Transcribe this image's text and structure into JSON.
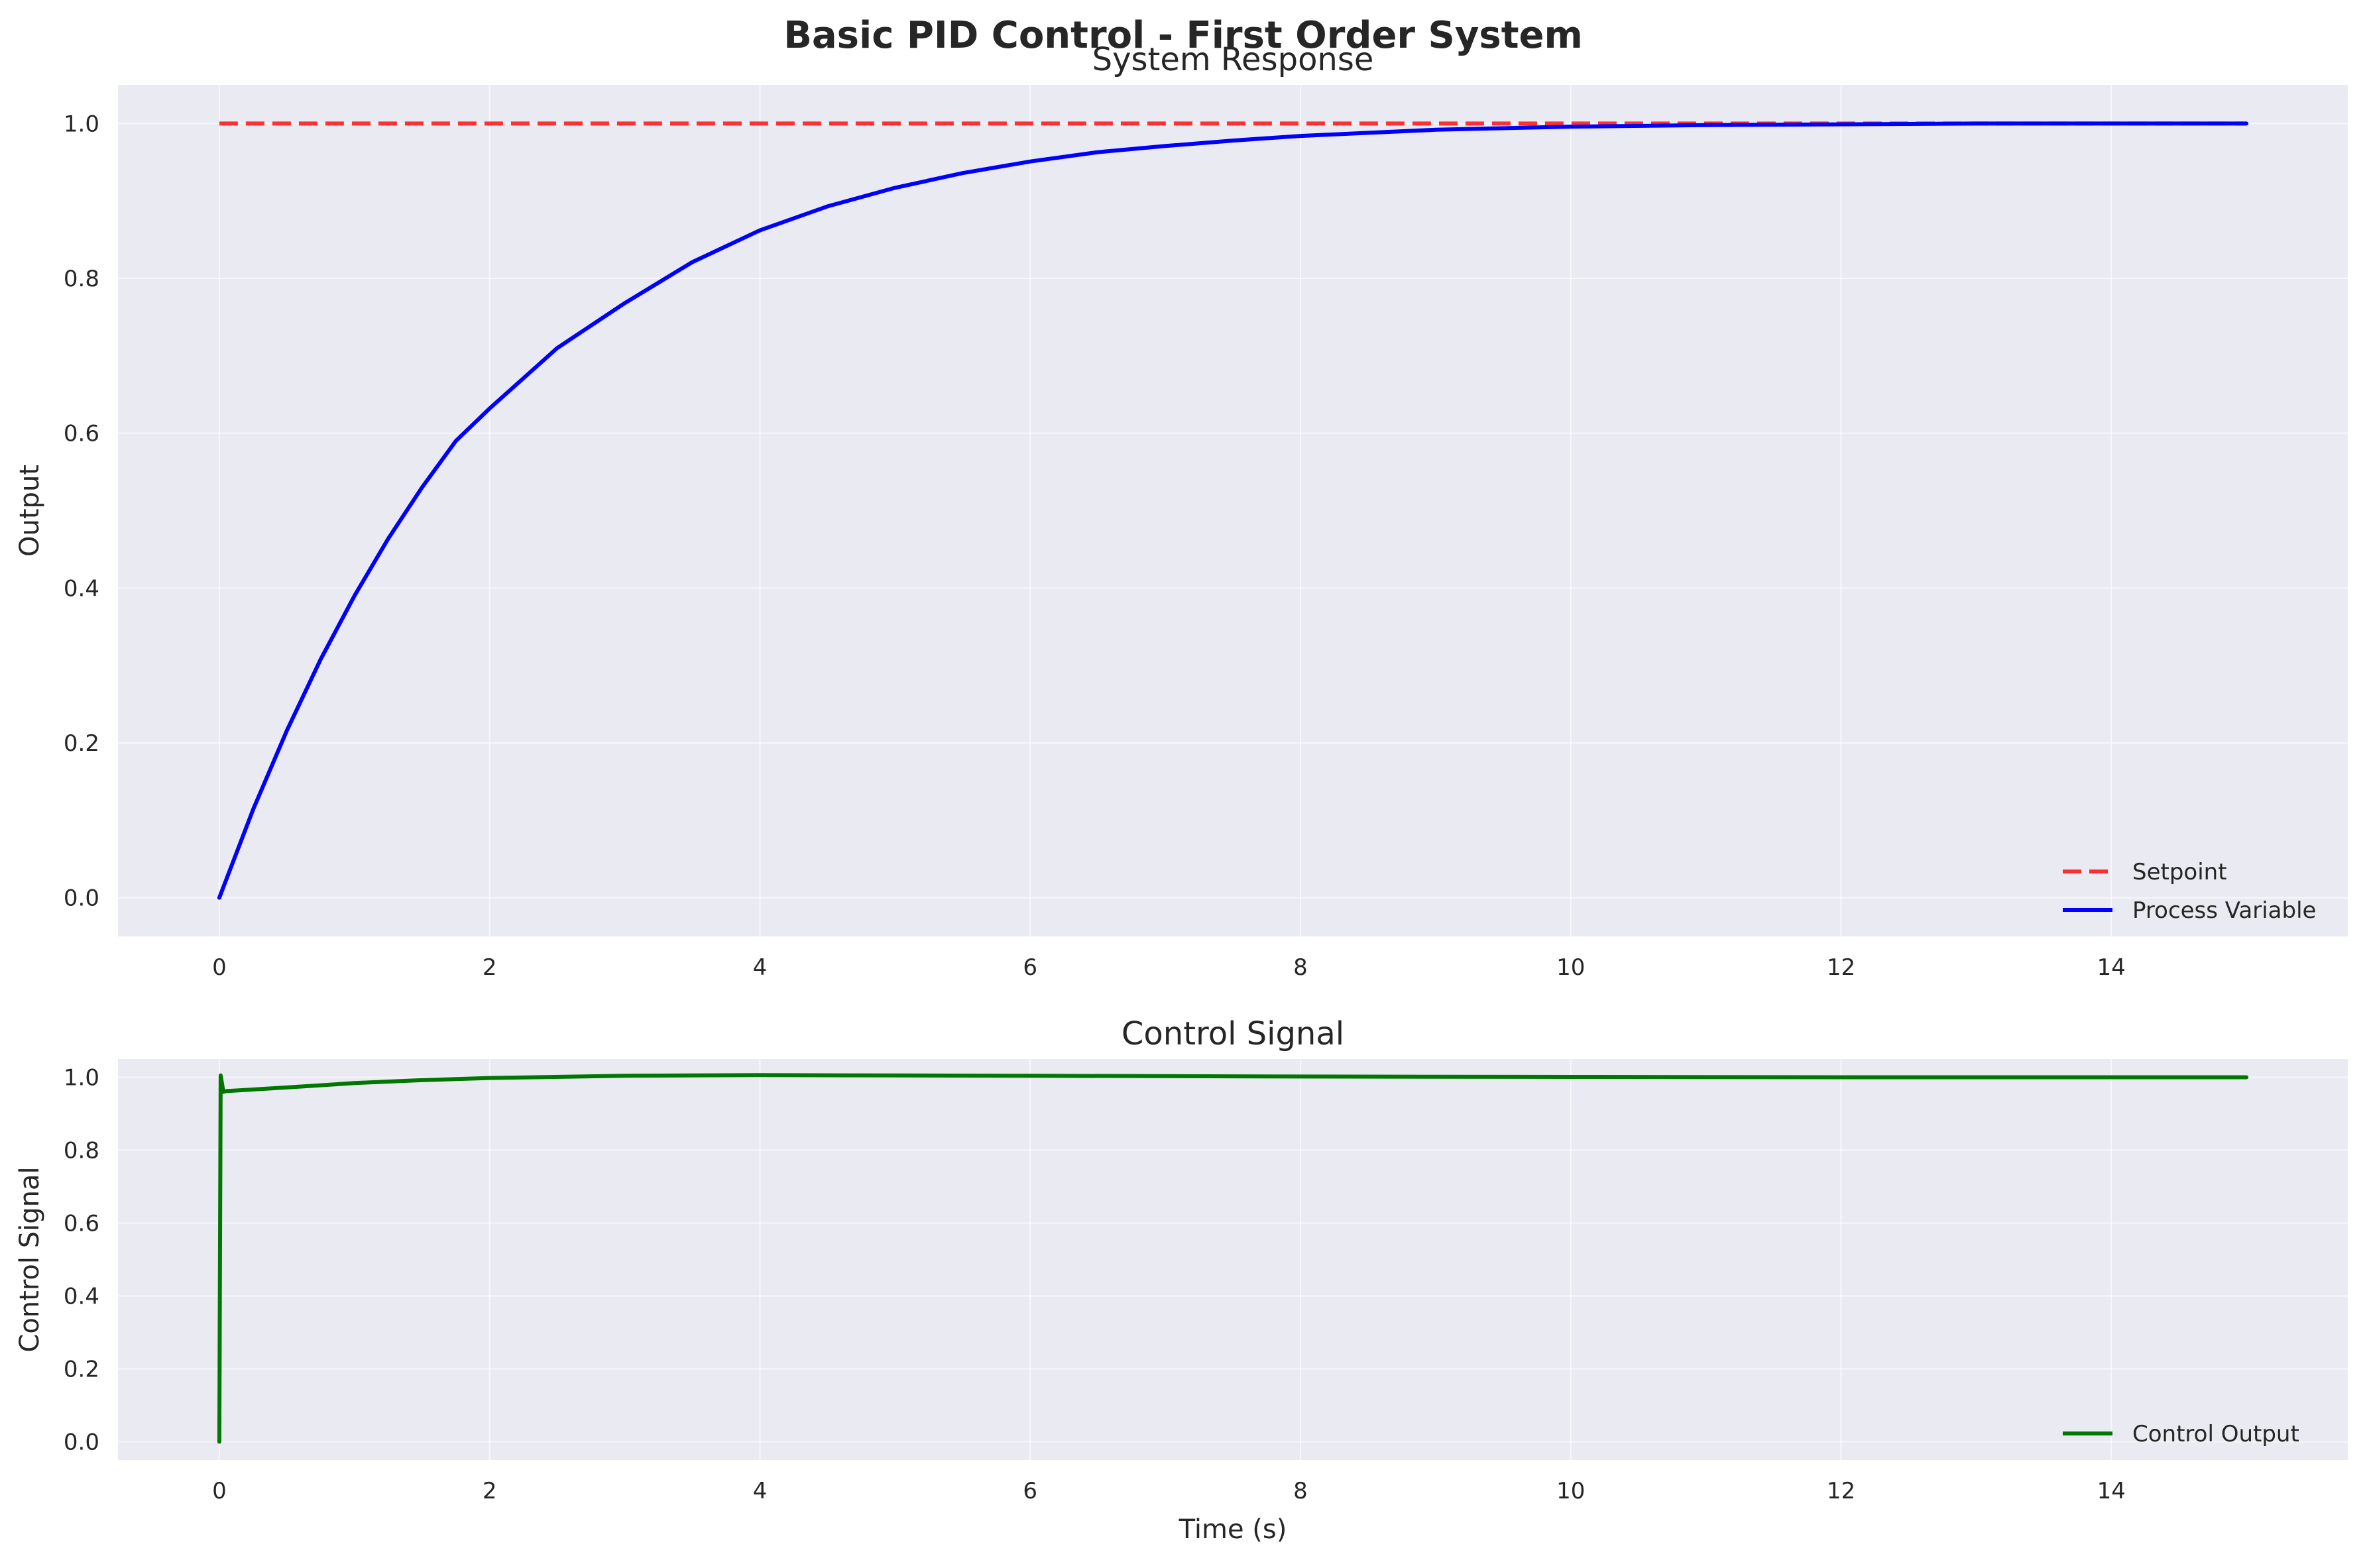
{
  "figure": {
    "title": "Basic PID Control - First Order System"
  },
  "chart_data": [
    {
      "type": "line",
      "title": "System Response",
      "xlabel": "",
      "ylabel": "Output",
      "xlim": [
        -0.75,
        15.75
      ],
      "ylim": [
        -0.05,
        1.05
      ],
      "xticks": [
        0,
        2,
        4,
        6,
        8,
        10,
        12,
        14
      ],
      "xtick_labels": [
        "0",
        "2",
        "4",
        "6",
        "8",
        "10",
        "12",
        "14"
      ],
      "yticks": [
        0,
        0.2,
        0.4,
        0.6,
        0.8,
        1.0
      ],
      "ytick_labels": [
        "0.0",
        "0.2",
        "0.4",
        "0.6",
        "0.8",
        "1.0"
      ],
      "grid": true,
      "legend_position": "lower-right",
      "series": [
        {
          "name": "Setpoint",
          "color": "#ff0000",
          "style": "dashed",
          "x": [
            0,
            15
          ],
          "y": [
            1.0,
            1.0
          ]
        },
        {
          "name": "Process Variable",
          "color": "#0000ff",
          "style": "solid",
          "x": [
            0,
            0.25,
            0.5,
            0.75,
            1,
            1.25,
            1.5,
            1.75,
            2,
            2.5,
            3,
            3.5,
            4,
            4.5,
            5,
            5.5,
            6,
            6.5,
            7,
            7.5,
            8,
            9,
            10,
            11,
            12,
            13,
            14,
            15
          ],
          "y": [
            0,
            0.114,
            0.216,
            0.308,
            0.39,
            0.464,
            0.53,
            0.59,
            0.632,
            0.71,
            0.768,
            0.821,
            0.862,
            0.893,
            0.917,
            0.936,
            0.951,
            0.963,
            0.971,
            0.978,
            0.984,
            0.992,
            0.996,
            0.998,
            0.999,
            1.0,
            1.0,
            1.0
          ]
        }
      ]
    },
    {
      "type": "line",
      "title": "Control Signal",
      "xlabel": "Time (s)",
      "ylabel": "Control Signal",
      "xlim": [
        -0.75,
        15.75
      ],
      "ylim": [
        -0.05,
        1.05
      ],
      "xticks": [
        0,
        2,
        4,
        6,
        8,
        10,
        12,
        14
      ],
      "xtick_labels": [
        "0",
        "2",
        "4",
        "6",
        "8",
        "10",
        "12",
        "14"
      ],
      "yticks": [
        0,
        0.2,
        0.4,
        0.6,
        0.8,
        1.0
      ],
      "ytick_labels": [
        "0.0",
        "0.2",
        "0.4",
        "0.6",
        "0.8",
        "1.0"
      ],
      "grid": true,
      "legend_position": "lower-right",
      "series": [
        {
          "name": "Control Output",
          "color": "#007800",
          "style": "solid",
          "x": [
            0,
            0.01,
            0.03,
            0.05,
            0.5,
            1,
            1.5,
            2,
            3,
            4,
            5,
            6,
            8,
            10,
            12,
            14,
            15
          ],
          "y": [
            0,
            1.005,
            0.96,
            0.962,
            0.972,
            0.984,
            0.992,
            0.998,
            1.004,
            1.006,
            1.005,
            1.004,
            1.002,
            1.001,
            1.0,
            1.0,
            1.0
          ]
        }
      ]
    }
  ]
}
